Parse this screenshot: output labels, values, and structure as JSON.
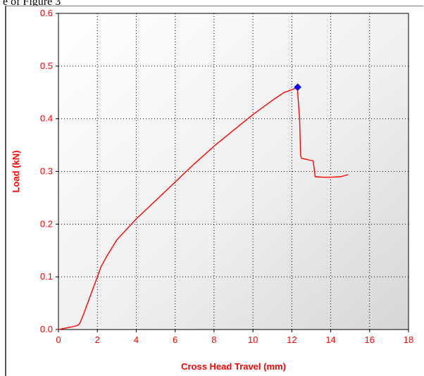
{
  "header": {
    "text": "e of Figure 3"
  },
  "chart_data": {
    "type": "line",
    "title": "",
    "xlabel": "Cross Head Travel (mm)",
    "ylabel": "Load (kN)",
    "xlim": [
      0,
      18
    ],
    "ylim": [
      0,
      0.6
    ],
    "x_ticks": [
      "0",
      "2",
      "4",
      "6",
      "8",
      "10",
      "12",
      "14",
      "16",
      "18"
    ],
    "y_ticks": [
      "0.0",
      "0.1",
      "0.2",
      "0.3",
      "0.4",
      "0.5",
      "0.6"
    ],
    "grid": true,
    "background": "gradient-gray",
    "series": [
      {
        "color": "#ff0000",
        "x": [
          0,
          0.4,
          0.8,
          1.0,
          1.1,
          1.3,
          1.5,
          1.7,
          1.9,
          2.0,
          2.2,
          2.5,
          3.0,
          3.5,
          4.0,
          5.0,
          6.0,
          7.0,
          8.0,
          9.0,
          10.0,
          11.0,
          11.6,
          12.0,
          12.3,
          12.3,
          12.4,
          12.45,
          12.5,
          13.1,
          13.15,
          13.2,
          13.6,
          14.0,
          14.5,
          14.9
        ],
        "y": [
          0.0,
          0.003,
          0.006,
          0.008,
          0.012,
          0.03,
          0.05,
          0.07,
          0.09,
          0.1,
          0.12,
          0.14,
          0.17,
          0.19,
          0.21,
          0.245,
          0.28,
          0.315,
          0.348,
          0.378,
          0.408,
          0.435,
          0.45,
          0.455,
          0.46,
          0.45,
          0.4,
          0.33,
          0.325,
          0.32,
          0.305,
          0.29,
          0.289,
          0.289,
          0.29,
          0.294
        ]
      }
    ],
    "markers": [
      {
        "x": 12.3,
        "y": 0.46,
        "color": "#0000ff",
        "shape": "diamond"
      }
    ]
  }
}
